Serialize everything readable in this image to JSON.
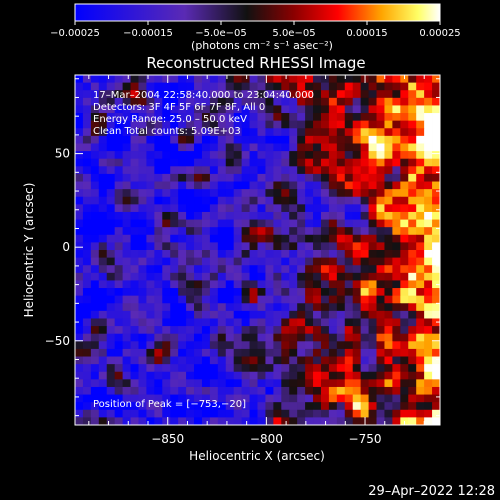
{
  "chart_data": {
    "type": "heatmap",
    "title": "Reconstructed RHESSI Image",
    "xlabel": "Heliocentric X (arcsec)",
    "ylabel": "Heliocentric Y (arcsec)",
    "xlim": [
      -897,
      -712
    ],
    "ylim": [
      -95,
      92
    ],
    "x_ticks": [
      -850,
      -800,
      -750
    ],
    "x_tick_labels": [
      "−850",
      "−800",
      "−750"
    ],
    "y_ticks": [
      50,
      0,
      -50
    ],
    "y_tick_labels": [
      "50",
      "0",
      "−50"
    ],
    "colorbar": {
      "range": [
        -0.00025,
        0.00025
      ],
      "ticks": [
        -0.00025,
        -0.00015,
        -5e-05,
        5e-05,
        0.00015,
        0.00025
      ],
      "tick_labels": [
        "−0.00025",
        "−0.00015",
        "−5.0e−05",
        "5.0e−05",
        "0.00015",
        "0.00025"
      ],
      "units_label": "(photons cm⁻² s⁻¹ asec⁻²)",
      "colors": [
        "#0000ff",
        "#5a2ab4",
        "#1a1a1a",
        "#8b0000",
        "#ff0000",
        "#ffa500",
        "#ffff66",
        "#ffffff"
      ]
    },
    "annotations": {
      "time_range": "17–Mar–2004 22:58:40.000 to 23:04:40.000",
      "detectors": "Detectors: 3F 4F 5F 6F 7F 8F, All 0",
      "energy": "Energy Range: 25.0 – 50.0 keV",
      "clean": "Clean     Total counts: 5.09E+03",
      "peak": "Position of Peak = [−753,−20]"
    },
    "peak_position": [
      -753,
      -20
    ]
  },
  "footer": {
    "date": "29–Apr–2022 12:28"
  }
}
